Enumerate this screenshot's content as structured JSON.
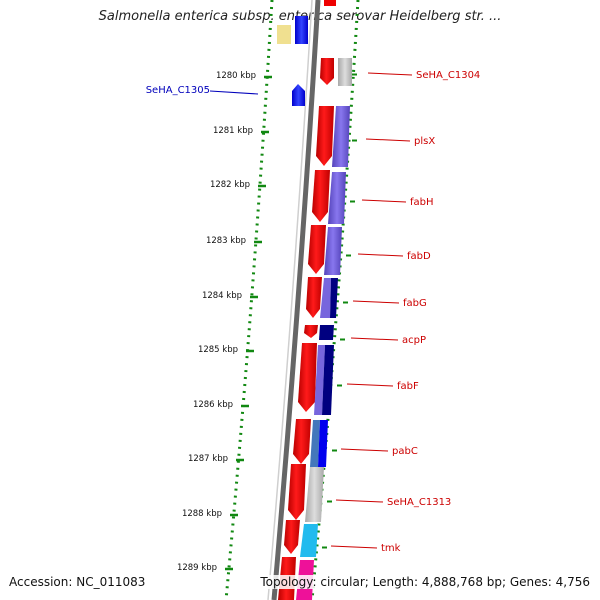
{
  "title": "Salmonella enterica subsp. enterica serovar Heidelberg str. ...",
  "accession": "Accession: NC_011083",
  "summary": "Topology: circular; Length: 4,888,768 bp; Genes: 4,756",
  "ticks": [
    "1280 kbp",
    "1281 kbp",
    "1282 kbp",
    "1283 kbp",
    "1284 kbp",
    "1285 kbp",
    "1286 kbp",
    "1287 kbp",
    "1288 kbp",
    "1289 kbp"
  ],
  "genes_reverse": [
    "SeHA_C1305"
  ],
  "genes_forward": [
    "SeHA_C1304",
    "plsX",
    "fabH",
    "fabD",
    "fabG",
    "acpP",
    "fabF",
    "pabC",
    "SeHA_C1313",
    "tmk"
  ],
  "colors": {
    "forward_label": "#cc0000",
    "reverse_label": "#0000bb",
    "gene_forward": "#ee0000",
    "gene_reverse": "#1111ee",
    "backbone": "#777777",
    "dotted_ring": "#118811",
    "cog_lipid": "#6655cc",
    "cog_dark": "#000080",
    "cog_gray": "#bbbbbb",
    "cog_cyan": "#22bbee",
    "cog_magenta": "#ee1199",
    "cog_yellow": "#f0e090"
  }
}
